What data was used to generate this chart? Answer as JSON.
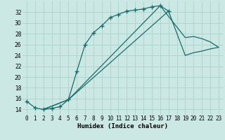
{
  "title": "",
  "xlabel": "Humidex (Indice chaleur)",
  "bg_color": "#cce8e4",
  "grid_color": "#b0d4d0",
  "line_color": "#1a6b6b",
  "xlim": [
    -0.5,
    23.5
  ],
  "ylim": [
    13.0,
    34.0
  ],
  "yticks": [
    14,
    16,
    18,
    20,
    22,
    24,
    26,
    28,
    30,
    32
  ],
  "xticks": [
    0,
    1,
    2,
    3,
    4,
    5,
    6,
    7,
    8,
    9,
    10,
    11,
    12,
    13,
    14,
    15,
    16,
    17,
    18,
    19,
    20,
    21,
    22,
    23
  ],
  "s1x": [
    0,
    1,
    2,
    3,
    4,
    5,
    6,
    7,
    8,
    9,
    10,
    11,
    12,
    13,
    14,
    15,
    16,
    17
  ],
  "s1y": [
    15.5,
    14.3,
    14.0,
    14.2,
    14.5,
    15.8,
    21.0,
    26.0,
    28.2,
    29.5,
    31.0,
    31.6,
    32.2,
    32.4,
    32.6,
    33.0,
    33.2,
    32.2
  ],
  "s2x": [
    2,
    5,
    16,
    19,
    20,
    21,
    22,
    23
  ],
  "s2y": [
    14.0,
    15.8,
    33.2,
    27.3,
    27.5,
    27.1,
    26.5,
    25.5
  ],
  "s3x": [
    2,
    5,
    17,
    19,
    20,
    21,
    22,
    23
  ],
  "s3y": [
    14.0,
    15.8,
    32.2,
    24.0,
    24.5,
    24.8,
    25.2,
    25.5
  ],
  "tick_fontsize": 5.5,
  "xlabel_fontsize": 6.5
}
